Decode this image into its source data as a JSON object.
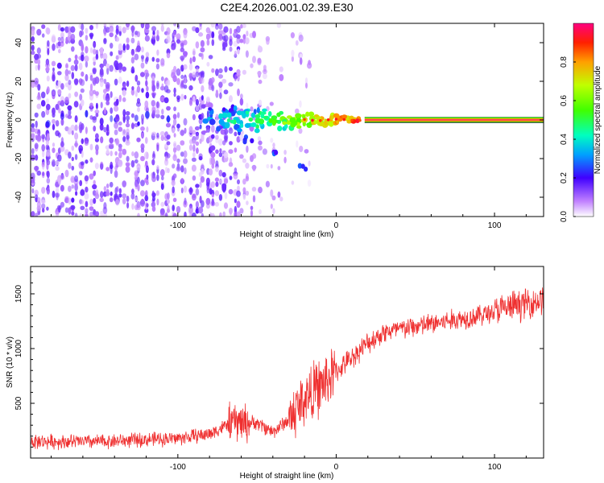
{
  "title": "C2E4.2026.001.02.39.E30",
  "chart_data": [
    {
      "type": "heatmap",
      "xlabel": "Height of straight line (km)",
      "ylabel": "Frequency (Hz)",
      "xlim": [
        -193,
        131
      ],
      "ylim": [
        -50,
        50
      ],
      "xticks": [
        -100,
        0,
        100
      ],
      "yticks": [
        -40,
        -20,
        0,
        20,
        40
      ],
      "colorbar": {
        "label": "Normalized spectral amplitude",
        "range": [
          0,
          1
        ],
        "ticks": [
          0.0,
          0.2,
          0.4,
          0.6,
          0.8
        ]
      },
      "features": {
        "noise_region_x": [
          -193,
          -60
        ],
        "line_start_x": 18,
        "line_frequency": 0,
        "burst_x": [
          -85,
          15
        ],
        "drift_tail": [
          [
            -55,
            -10
          ],
          [
            -38,
            -18
          ],
          [
            -22,
            -25
          ]
        ]
      }
    },
    {
      "type": "line",
      "xlabel": "Height of straight line (km)",
      "ylabel": "SNR (10 * v/v)",
      "xlim": [
        -193,
        131
      ],
      "ylim": [
        0,
        1750
      ],
      "xticks": [
        -100,
        0,
        100
      ],
      "yticks": [
        500,
        1000,
        1500
      ],
      "color": "#ef3030",
      "trend": {
        "x": [
          -193,
          -150,
          -100,
          -80,
          -65,
          -50,
          -40,
          -30,
          -20,
          -10,
          0,
          10,
          20,
          30,
          50,
          70,
          90,
          110,
          131
        ],
        "y": [
          150,
          150,
          180,
          220,
          330,
          320,
          240,
          350,
          550,
          650,
          790,
          920,
          1050,
          1150,
          1200,
          1250,
          1300,
          1380,
          1450
        ]
      }
    }
  ]
}
